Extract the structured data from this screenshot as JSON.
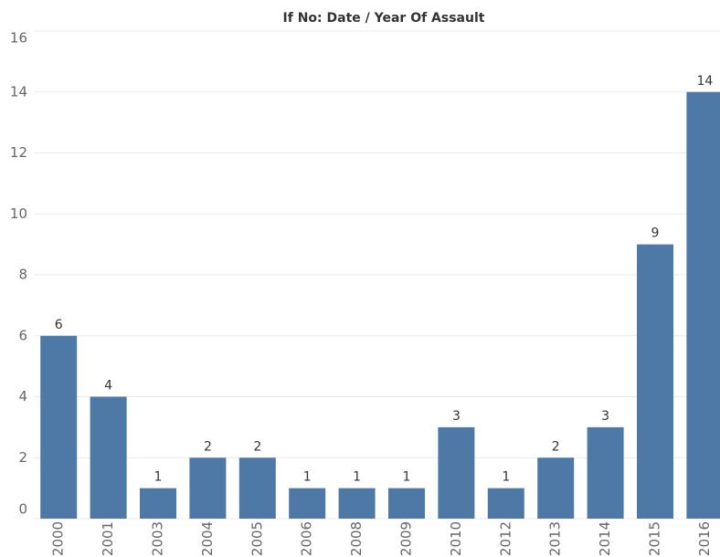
{
  "chart_data": {
    "type": "bar",
    "title": "If No: Date / Year Of Assault",
    "categories": [
      "2000",
      "2001",
      "2003",
      "2004",
      "2005",
      "2006",
      "2008",
      "2009",
      "2010",
      "2012",
      "2013",
      "2014",
      "2015",
      "2016"
    ],
    "values": [
      6,
      4,
      1,
      2,
      2,
      1,
      1,
      1,
      3,
      1,
      2,
      3,
      9,
      14
    ],
    "color": "#4e79a7",
    "ylim": [
      0,
      16
    ],
    "yticks": [
      0,
      2,
      4,
      6,
      8,
      10,
      12,
      14,
      16
    ],
    "grid": true
  }
}
